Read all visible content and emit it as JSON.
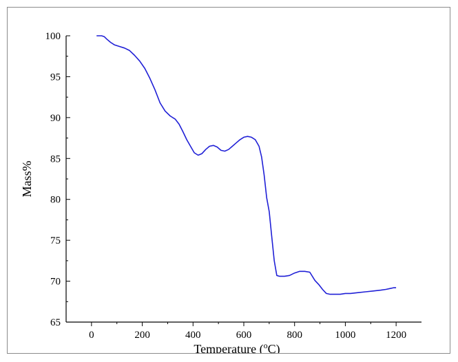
{
  "chart_data": {
    "type": "line",
    "title": "",
    "xlabel": "Temperature (",
    "xlabel_sup": "o",
    "xlabel_tail": "C)",
    "ylabel": "Mass%",
    "xlim": [
      -100,
      1300
    ],
    "ylim": [
      65,
      100
    ],
    "x_ticks": [
      0,
      200,
      400,
      600,
      800,
      1000,
      1200
    ],
    "y_ticks": [
      65,
      70,
      75,
      80,
      85,
      90,
      95,
      100
    ],
    "grid": false,
    "legend": "none",
    "series": [
      {
        "color": "#1f1fd6",
        "x": [
          20,
          40,
          50,
          60,
          75,
          90,
          110,
          130,
          150,
          170,
          190,
          210,
          230,
          250,
          270,
          290,
          310,
          330,
          345,
          360,
          375,
          390,
          405,
          420,
          435,
          450,
          465,
          480,
          495,
          510,
          525,
          540,
          555,
          570,
          585,
          600,
          615,
          630,
          645,
          660,
          670,
          680,
          690,
          700,
          710,
          720,
          730,
          740,
          760,
          780,
          800,
          820,
          840,
          860,
          880,
          895,
          910,
          925,
          940,
          960,
          980,
          1000,
          1020,
          1050,
          1080,
          1110,
          1140,
          1160,
          1175,
          1190,
          1200
        ],
        "y": [
          100.0,
          100.0,
          99.9,
          99.6,
          99.2,
          98.9,
          98.7,
          98.5,
          98.2,
          97.6,
          96.9,
          96.0,
          94.8,
          93.4,
          91.8,
          90.8,
          90.2,
          89.8,
          89.2,
          88.3,
          87.3,
          86.5,
          85.7,
          85.4,
          85.6,
          86.1,
          86.5,
          86.6,
          86.4,
          86.0,
          85.9,
          86.1,
          86.5,
          86.9,
          87.3,
          87.6,
          87.7,
          87.6,
          87.3,
          86.5,
          85.2,
          83.0,
          80.2,
          78.5,
          75.5,
          72.5,
          70.7,
          70.6,
          70.6,
          70.7,
          71.0,
          71.2,
          71.2,
          71.1,
          70.1,
          69.6,
          69.0,
          68.5,
          68.4,
          68.4,
          68.4,
          68.5,
          68.5,
          68.6,
          68.7,
          68.8,
          68.9,
          69.0,
          69.1,
          69.2,
          69.2
        ]
      }
    ]
  }
}
